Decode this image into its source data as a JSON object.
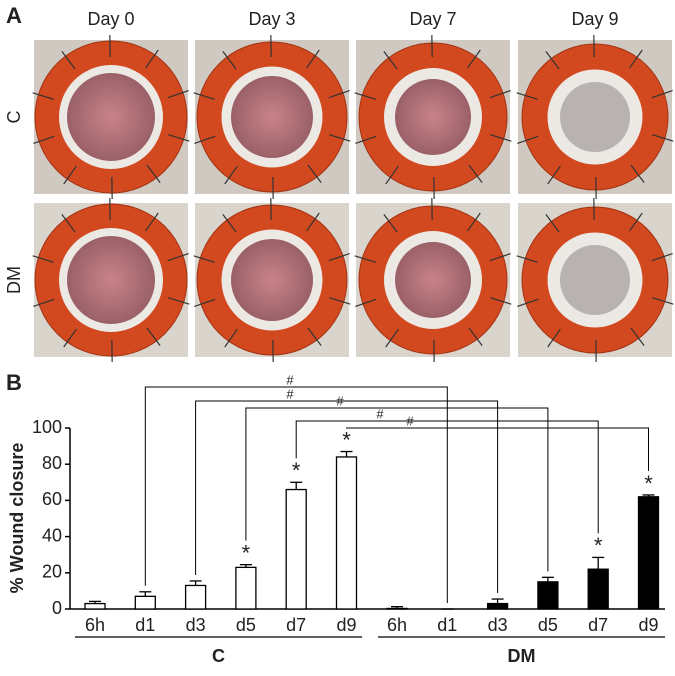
{
  "panel_a": {
    "label": "A",
    "columns": [
      "Day 0",
      "Day 3",
      "Day 7",
      "Day 9"
    ],
    "rows": [
      "C",
      "DM"
    ]
  },
  "chart_data": {
    "type": "bar",
    "panel_label": "B",
    "y_label": "% Wound closure",
    "categories": [
      "6h",
      "d1",
      "d3",
      "d5",
      "d7",
      "d9"
    ],
    "series": [
      {
        "name": "C",
        "color": "#ffffff",
        "values": [
          3,
          7,
          13,
          23,
          66,
          84
        ],
        "errors": [
          1.2,
          2.5,
          2.5,
          1.5,
          4,
          3
        ],
        "significance": [
          null,
          null,
          null,
          "*",
          "*",
          "*"
        ]
      },
      {
        "name": "DM",
        "color": "#000000",
        "values": [
          0.3,
          0,
          3,
          15,
          22,
          62
        ],
        "errors": [
          1,
          0,
          2.5,
          2.5,
          6.5,
          1
        ],
        "significance": [
          null,
          null,
          null,
          null,
          "*",
          "*"
        ]
      }
    ],
    "comparisons": [
      {
        "category": 1,
        "label": "#"
      },
      {
        "category": 2,
        "label": "#"
      },
      {
        "category": 3,
        "label": "#"
      },
      {
        "category": 4,
        "label": "#"
      },
      {
        "category": 5,
        "label": "#"
      }
    ],
    "ylim": [
      0,
      100
    ],
    "yticks": [
      0,
      20,
      40,
      60,
      80,
      100
    ]
  }
}
